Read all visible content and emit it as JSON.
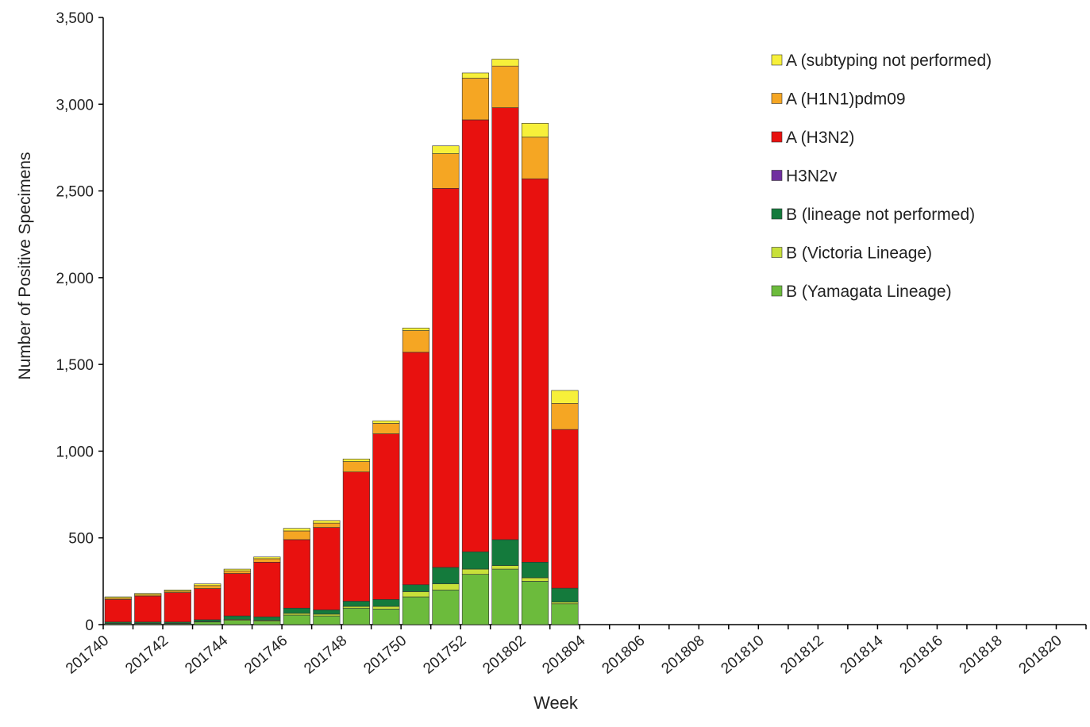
{
  "chart_data": {
    "type": "stacked_bar",
    "x_label": "Week",
    "y_label": "Number of Positive Specimens",
    "categories": [
      "201740",
      null,
      "201742",
      null,
      "201744",
      null,
      "201746",
      null,
      "201748",
      null,
      "201750",
      null,
      "201752",
      null,
      "201802",
      null,
      "201804",
      null,
      "201806",
      null,
      "201808",
      null,
      "201810",
      null,
      "201812",
      null,
      "201814",
      null,
      "201816",
      null,
      "201818",
      null,
      "201820"
    ],
    "ylim": [
      0,
      3500
    ],
    "yticks": [
      0,
      500,
      {
        "value": 1000,
        "label": "1,000"
      },
      {
        "value": 1500,
        "label": "1,500"
      },
      {
        "value": 2000,
        "label": "2,000"
      },
      {
        "value": 2500,
        "label": "2,500"
      },
      {
        "value": 3000,
        "label": "3,000"
      },
      {
        "value": 3500,
        "label": "3,500"
      }
    ],
    "legend": "upper right",
    "series": [
      {
        "name": "B (Yamagata Lineage)",
        "color": "#6cbb3c",
        "values": [
          5,
          5,
          5,
          15,
          25,
          20,
          55,
          50,
          95,
          90,
          160,
          200,
          290,
          320,
          250,
          120,
          null,
          null,
          null,
          null,
          null,
          null,
          null,
          null,
          null,
          null,
          null,
          null,
          null,
          null,
          null,
          null,
          null
        ]
      },
      {
        "name": "B (Victoria Lineage)",
        "color": "#c8e03a",
        "values": [
          2,
          2,
          2,
          3,
          5,
          5,
          10,
          10,
          10,
          15,
          30,
          35,
          30,
          20,
          20,
          10,
          null,
          null,
          null,
          null,
          null,
          null,
          null,
          null,
          null,
          null,
          null,
          null,
          null,
          null,
          null,
          null,
          null
        ]
      },
      {
        "name": "B (lineage not performed)",
        "color": "#147a3c",
        "values": [
          8,
          8,
          8,
          10,
          20,
          20,
          30,
          25,
          30,
          40,
          40,
          95,
          100,
          150,
          90,
          80,
          null,
          null,
          null,
          null,
          null,
          null,
          null,
          null,
          null,
          null,
          null,
          null,
          null,
          null,
          null,
          null,
          null
        ]
      },
      {
        "name": "H3N2v",
        "color": "#7030a0",
        "values": [
          0,
          0,
          0,
          0,
          0,
          0,
          0,
          0,
          0,
          0,
          0,
          0,
          0,
          0,
          0,
          0,
          null,
          null,
          null,
          null,
          null,
          null,
          null,
          null,
          null,
          null,
          null,
          null,
          null,
          null,
          null,
          null,
          null
        ]
      },
      {
        "name": "A (H3N2)",
        "color": "#e8110f",
        "values": [
          130,
          150,
          170,
          180,
          245,
          315,
          395,
          475,
          745,
          955,
          1340,
          2185,
          2490,
          2490,
          2210,
          915,
          null,
          null,
          null,
          null,
          null,
          null,
          null,
          null,
          null,
          null,
          null,
          null,
          null,
          null,
          null,
          null,
          null
        ]
      },
      {
        "name": "A (H1N1)pdm09",
        "color": "#f5a623",
        "values": [
          8,
          8,
          8,
          17,
          15,
          20,
          50,
          25,
          60,
          60,
          125,
          200,
          240,
          240,
          240,
          150,
          null,
          null,
          null,
          null,
          null,
          null,
          null,
          null,
          null,
          null,
          null,
          null,
          null,
          null,
          null,
          null,
          null
        ]
      },
      {
        "name": "A (subtyping not performed)",
        "color": "#f7f03a",
        "values": [
          7,
          7,
          7,
          10,
          10,
          10,
          15,
          15,
          15,
          15,
          15,
          45,
          30,
          40,
          80,
          75,
          null,
          null,
          null,
          null,
          null,
          null,
          null,
          null,
          null,
          null,
          null,
          null,
          null,
          null,
          null,
          null,
          null
        ]
      }
    ]
  }
}
